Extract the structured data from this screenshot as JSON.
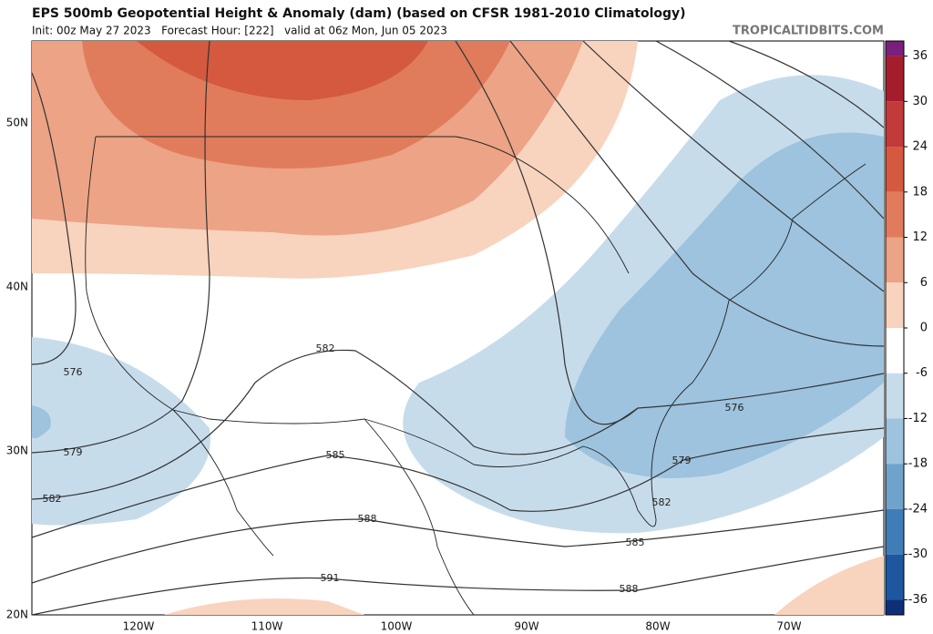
{
  "header": {
    "title": "EPS 500mb Geopotential Height & Anomaly (dam) (based on CFSR 1981-2010 Climatology)",
    "subtitle": "Init: 00z May 27 2023   Forecast Hour: [222]   valid at 06z Mon, Jun 05 2023",
    "site": "TROPICALTIDBITS.COM"
  },
  "map": {
    "lat_labels": [
      "50N",
      "40N",
      "30N",
      "20N"
    ],
    "lon_labels": [
      "120W",
      "110W",
      "100W",
      "90W",
      "80W",
      "70W"
    ],
    "contour_labels": [
      "576",
      "579",
      "582",
      "582",
      "585",
      "588",
      "591",
      "576",
      "579",
      "582",
      "585",
      "588"
    ]
  },
  "colorbar": {
    "lim": [
      -38,
      38
    ],
    "ticks": [
      36,
      30,
      24,
      18,
      12,
      6,
      0,
      -6,
      -12,
      -18,
      -24,
      -30,
      -36
    ],
    "colors": [
      "#7a1f7d",
      "#a51d2d",
      "#c23a3a",
      "#d4593f",
      "#e07c5c",
      "#eda385",
      "#f8d3be",
      "#ffffff",
      "#c7dceb",
      "#9dc3de",
      "#6fa3cc",
      "#3e7db8",
      "#1e56a0",
      "#0d2f78"
    ]
  }
}
